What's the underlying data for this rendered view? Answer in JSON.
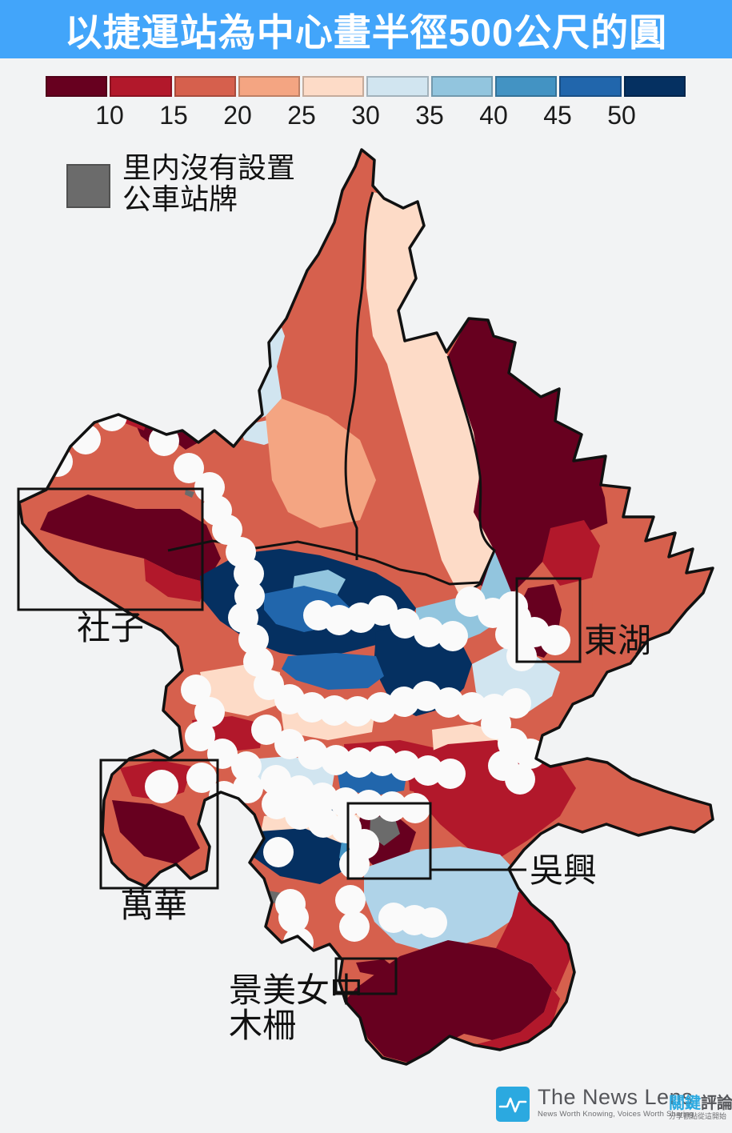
{
  "title": "以捷運站為中心畫半徑500公尺的圓",
  "colorbar": {
    "type": "choropleth-scale",
    "domain_min": 10,
    "domain_max": 50,
    "ticks": [
      "10",
      "15",
      "20",
      "25",
      "30",
      "35",
      "40",
      "45",
      "50"
    ],
    "colors": [
      "#67001F",
      "#B2182B",
      "#D6604D",
      "#F4A582",
      "#FDDBC7",
      "#D1E5F0",
      "#92C5DE",
      "#4393C3",
      "#2166AC",
      "#053061"
    ]
  },
  "legend": {
    "no_bus_stop_color": "#6B6B6B",
    "line1": "里内沒有設置",
    "line2": "公車站牌"
  },
  "map_labels": {
    "shezi": "社子",
    "donghu": "東湖",
    "wanhua": "萬華",
    "wuxing": "吳興",
    "jingmei": "景美女中",
    "muzha": "木柵"
  },
  "colors": {
    "titlebar": "#42A5FA",
    "background": "#F2F3F4",
    "station_circle": "#FAFAFA",
    "boundary": "#111111"
  },
  "footer": {
    "brand": "The News Lens",
    "brand_zh_blue": "關鍵",
    "brand_zh_dark": "評論",
    "tagline_en": "News Worth Knowing, Voices Worth Sharing",
    "tagline_zh": "分享觀點從這開始"
  }
}
